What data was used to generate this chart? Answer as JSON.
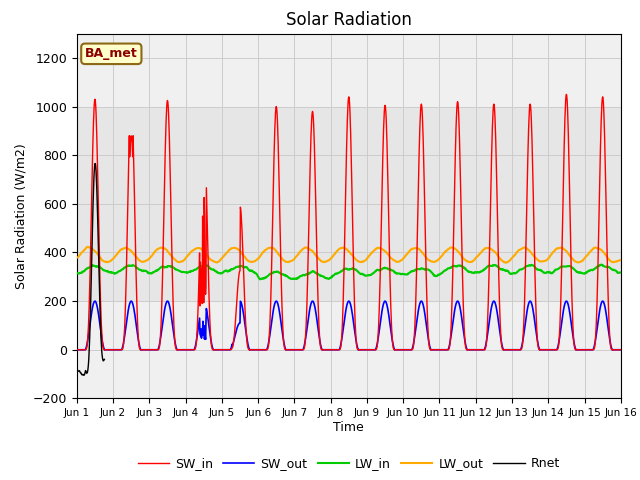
{
  "title": "Solar Radiation",
  "xlabel": "Time",
  "ylabel": "Solar Radiation (W/m2)",
  "ylim": [
    -200,
    1300
  ],
  "yticks": [
    -200,
    0,
    200,
    400,
    600,
    800,
    1000,
    1200
  ],
  "xtick_labels": [
    "Jun 1",
    "Jun 2",
    "Jun 3",
    "Jun 4",
    "Jun 5",
    "Jun 6",
    "Jun 7",
    "Jun 8",
    "Jun 9",
    "Jun 10",
    "Jun 11",
    "Jun 12",
    "Jun 13",
    "Jun 14",
    "Jun 15",
    "Jun 16"
  ],
  "legend_labels": [
    "SW_in",
    "SW_out",
    "LW_in",
    "LW_out",
    "Rnet"
  ],
  "colors": {
    "SW_in": "#ff0000",
    "SW_out": "#0000ff",
    "LW_in": "#00cc00",
    "LW_out": "#ffaa00",
    "Rnet": "#000000"
  },
  "annotation_text": "BA_met",
  "annotation_color": "#8b0000",
  "annotation_bg": "#ffffcc",
  "grid_color": "#cccccc",
  "bg_inner": "#e8e8e8",
  "bg_outer": "#f0f0f0",
  "n_days": 15
}
